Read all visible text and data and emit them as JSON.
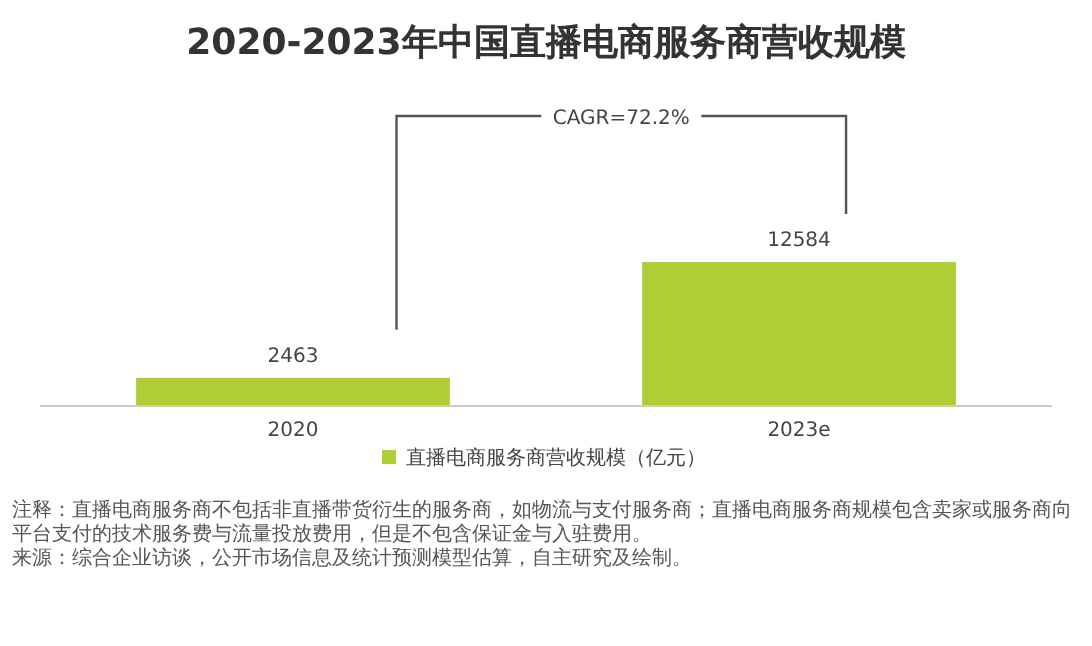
{
  "chart_data": {
    "type": "bar",
    "title": "2020-2023年中国直播电商服务商营收规模",
    "categories": [
      "2020",
      "2023e"
    ],
    "series": [
      {
        "name": "直播电商服务商营收规模（亿元）",
        "color": "#aecd36",
        "values": [
          2463,
          12584
        ]
      }
    ],
    "data_labels": true,
    "legend": "bottom",
    "annotations": [
      "CAGR=72.2%",
      "注释：直播电商服务商不包括非直播带货衍生的服务商，如物流与支付服务商；直播电商服务商规模包含卖家或服务商向平台支付的技术服务费与流量投放费用，但是不包含保证金与入驻费用。",
      "来源：综合企业访谈，公开市场信息及统计预测模型估算，自主研究及绘制。"
    ]
  }
}
